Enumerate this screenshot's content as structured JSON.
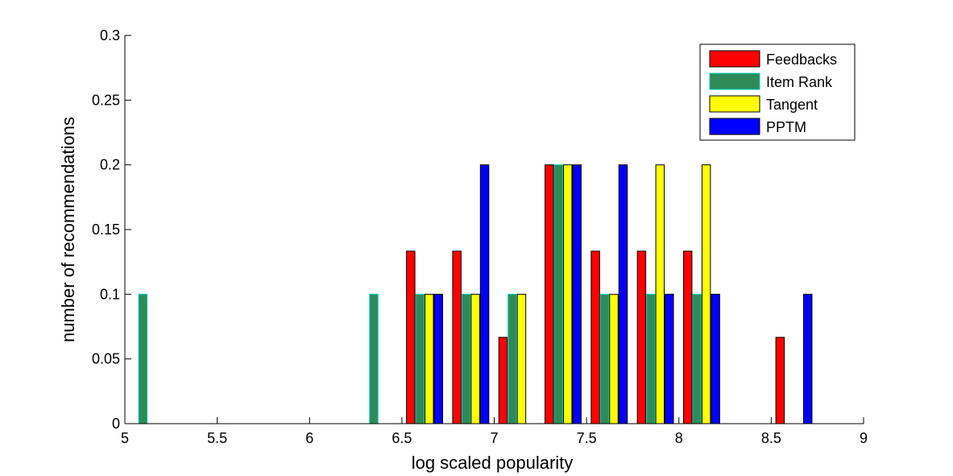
{
  "chart_data": {
    "type": "bar",
    "xlabel": "log scaled popularity",
    "ylabel": "number of recommendations",
    "xlim": [
      5,
      9
    ],
    "ylim": [
      0,
      0.3
    ],
    "xticks": [
      "5",
      "5.5",
      "6",
      "6.5",
      "7",
      "7.5",
      "8",
      "8.5",
      "9"
    ],
    "yticks": [
      "0",
      "0.05",
      "0.1",
      "0.15",
      "0.2",
      "0.25",
      "0.3"
    ],
    "grid": false,
    "legend_position": "top-right",
    "x": [
      5.125,
      5.375,
      5.625,
      5.875,
      6.125,
      6.375,
      6.625,
      6.875,
      7.125,
      7.375,
      7.625,
      7.875,
      8.125,
      8.375,
      8.625,
      8.875
    ],
    "series": [
      {
        "name": "Feedbacks",
        "color": "#ff0000",
        "values": [
          0,
          0,
          0,
          0,
          0,
          0,
          0.1333,
          0.1333,
          0.0667,
          0.2,
          0.1333,
          0.1333,
          0.1333,
          0,
          0.0667,
          0
        ]
      },
      {
        "name": "Item Rank",
        "color": "#2e8b57",
        "edge": "#00cccc",
        "values": [
          0.1,
          0,
          0,
          0,
          0,
          0.1,
          0.1,
          0.1,
          0.1,
          0.2,
          0.1,
          0.1,
          0.1,
          0,
          0,
          0
        ]
      },
      {
        "name": "Tangent",
        "color": "#ffff00",
        "values": [
          0,
          0,
          0,
          0,
          0,
          0,
          0.1,
          0.1,
          0.1,
          0.2,
          0.1,
          0.2,
          0.2,
          0,
          0,
          0
        ]
      },
      {
        "name": "PPTM",
        "color": "#0000ff",
        "values": [
          0,
          0,
          0,
          0,
          0,
          0,
          0.1,
          0.2,
          0,
          0.2,
          0.2,
          0.1,
          0.1,
          0,
          0.1,
          0
        ]
      }
    ]
  }
}
